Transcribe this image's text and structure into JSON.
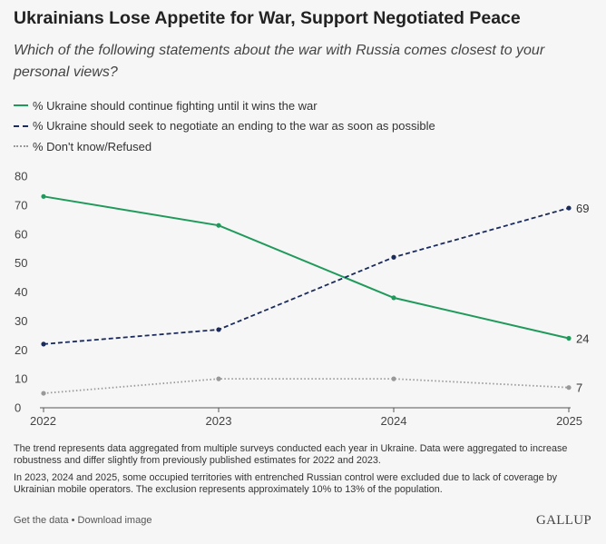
{
  "header": {
    "title": "Ukrainians Lose Appetite for War, Support Negotiated Peace",
    "subtitle": "Which of the following statements about the war with Russia comes closest to your personal views?"
  },
  "chart_data": {
    "type": "line",
    "x": [
      "2022",
      "2023",
      "2024",
      "2025"
    ],
    "ylim": [
      0,
      80
    ],
    "yticks": [
      "0",
      "10",
      "20",
      "30",
      "40",
      "50",
      "60",
      "70",
      "80"
    ],
    "grid": false,
    "legend_position": "top-left",
    "series": [
      {
        "name": "% Ukraine should continue fighting until it wins the war",
        "values": [
          73,
          63,
          38,
          24
        ],
        "end_label": "24",
        "color": "#1f9a5b",
        "style": "solid"
      },
      {
        "name": "% Ukraine should seek to negotiate an ending to the war as soon as possible",
        "values": [
          22,
          27,
          52,
          69
        ],
        "end_label": "69",
        "color": "#1a2b5c",
        "style": "dashed"
      },
      {
        "name": "% Don't know/Refused",
        "values": [
          5,
          10,
          10,
          7
        ],
        "end_label": "7",
        "color": "#999999",
        "style": "dotted"
      }
    ]
  },
  "notes": [
    "The trend represents data aggregated from multiple surveys conducted each year in Ukraine. Data were aggregated to increase robustness and differ slightly from previously published estimates for 2022 and 2023.",
    "In 2023, 2024 and 2025, some occupied territories with entrenched Russian control were excluded due to lack of coverage by Ukrainian mobile operators. The exclusion represents approximately 10% to 13% of the population."
  ],
  "footer": {
    "get_data": "Get the data",
    "separator": " • ",
    "download": "Download image",
    "brand": "GALLUP"
  }
}
